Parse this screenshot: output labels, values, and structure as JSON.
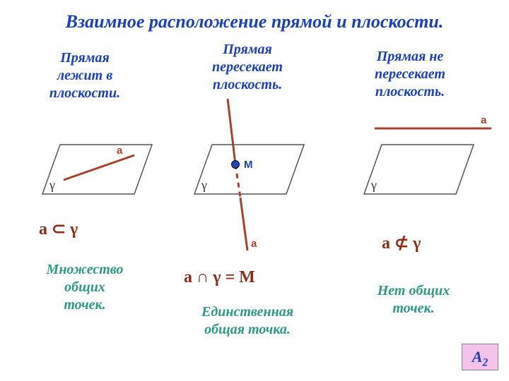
{
  "title": {
    "text": "Взаимное расположение прямой и плоскости.",
    "color": "#1a3fbf",
    "fontsize": 26
  },
  "columns": {
    "col1": {
      "caption": "Прямая\nлежит в\nплоскости.",
      "caption_color": "#1a3fbf",
      "caption_fontsize": 20,
      "formula_html": "a ⊂ γ",
      "formula_color": "#8b2e1a",
      "formula_fontsize": 24,
      "bottom": "Множество\nобщих\nточек.",
      "bottom_color": "#2e9a86",
      "bottom_fontsize": 20,
      "plane_label": "γ",
      "line_label": "а",
      "label_color": "#8b2e1a",
      "line_color": "#a7432c",
      "plane_stroke": "#555555"
    },
    "col2": {
      "caption": "Прямая\nпересекает\nплоскость.",
      "caption_color": "#1a3fbf",
      "caption_fontsize": 20,
      "formula_text": "a ∩  γ =  М",
      "formula_color": "#8b2e1a",
      "formula_fontsize": 24,
      "bottom": "Единственная\nобщая точка.",
      "bottom_color": "#2e9a86",
      "bottom_fontsize": 20,
      "plane_label": "γ",
      "line_label": "а",
      "point_label": "М",
      "point_label_color": "#1a3fbf",
      "label_color": "#8b2e1a",
      "line_color": "#a7432c",
      "plane_stroke": "#555555",
      "point_fill": "#2646b8",
      "point_stroke": "#0a0a0a"
    },
    "col3": {
      "caption": "Прямая не\nпересекает\nплоскость.",
      "caption_color": "#1a3fbf",
      "caption_fontsize": 20,
      "formula_html": "a ⊄ γ",
      "formula_color": "#8b2e1a",
      "formula_fontsize": 24,
      "bottom": "Нет общих\nточек.",
      "bottom_color": "#2e9a86",
      "bottom_fontsize": 20,
      "plane_label": "γ",
      "line_label": "а",
      "label_color": "#8b2e1a",
      "line_color": "#a7432c",
      "plane_stroke": "#555555"
    }
  },
  "badge": {
    "text_main": "А",
    "text_sub": "2",
    "bg": "#f4c3ea",
    "color": "#1a3fbf",
    "fontsize": 22,
    "width": 50,
    "height": 36
  }
}
